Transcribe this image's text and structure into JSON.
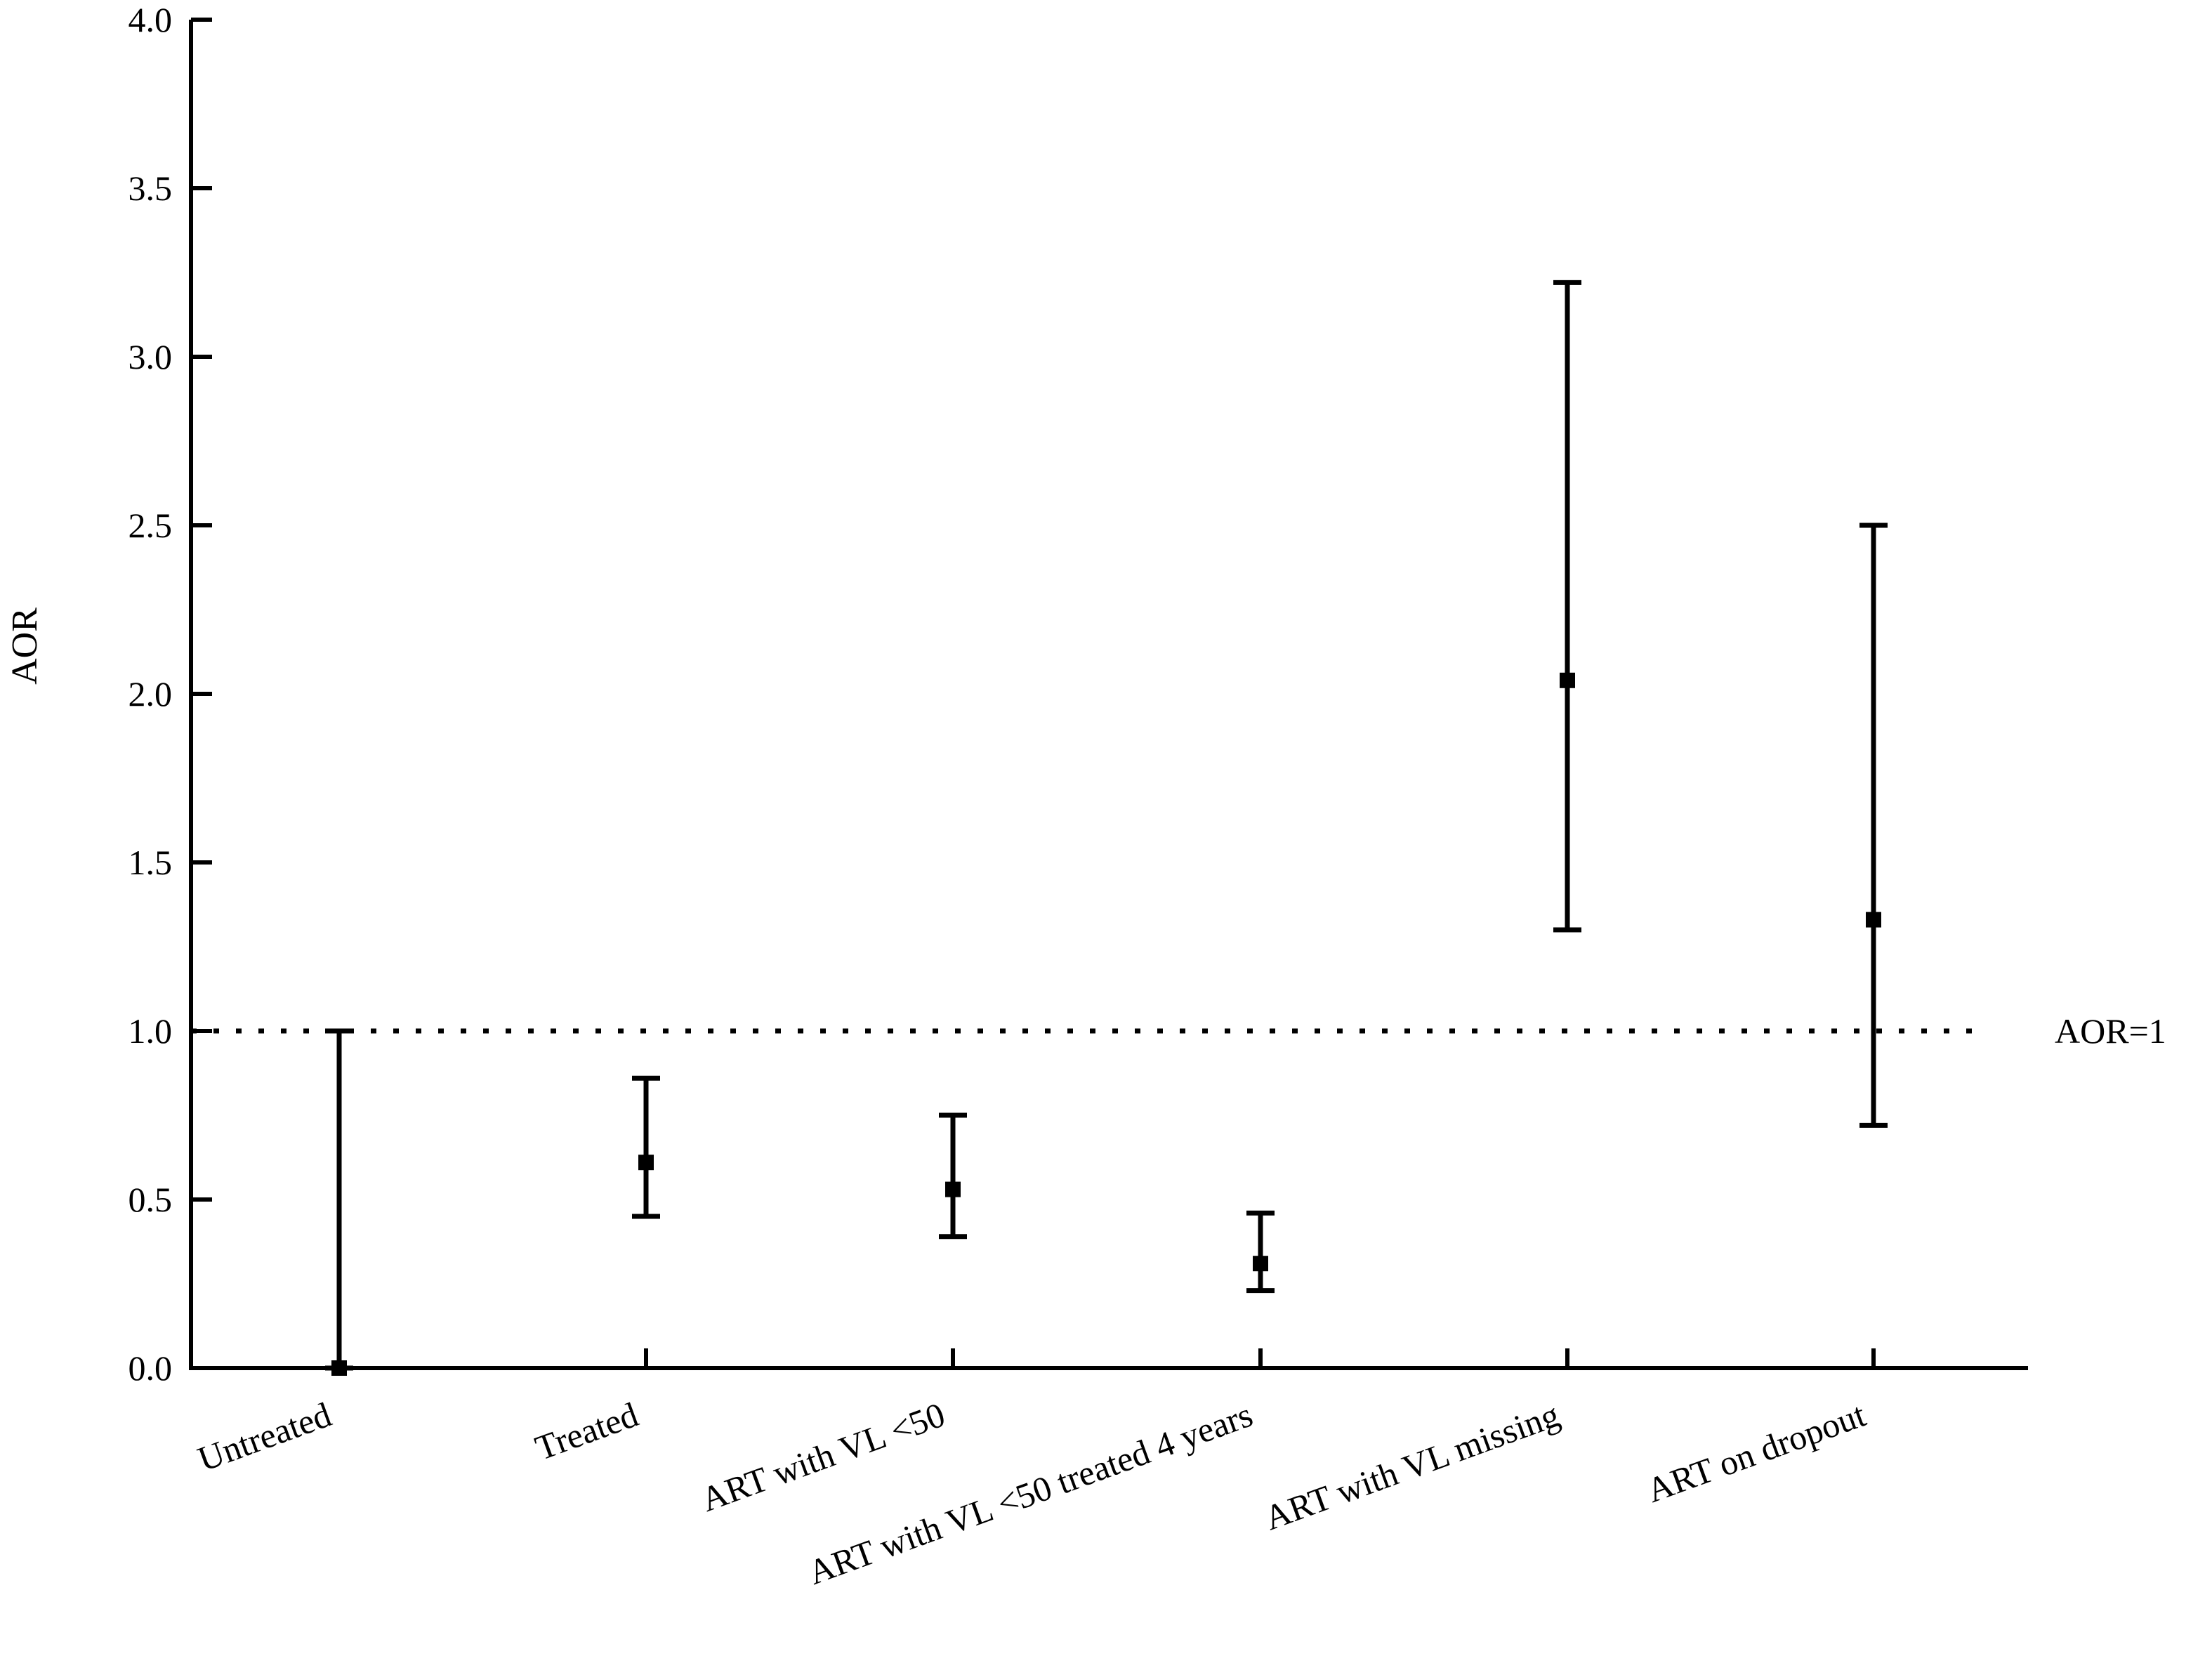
{
  "chart_data": {
    "type": "scatter",
    "subtype": "point-with-error-bars",
    "title": "",
    "xlabel": "",
    "ylabel": "AOR",
    "ylim": [
      0,
      4.0
    ],
    "yticks": [
      "0.0",
      "0.5",
      "1.0",
      "1.5",
      "2.0",
      "2.5",
      "3.0",
      "3.5",
      "4.0"
    ],
    "categories": [
      "Untreated",
      "Treated",
      "ART with VL <50",
      "ART with VL <50 treated 4 years",
      "ART with VL missing",
      "ART on dropout"
    ],
    "points": [
      {
        "category": "Untreated",
        "estimate": 0.0,
        "lower": 0.0,
        "upper": 1.0
      },
      {
        "category": "Treated",
        "estimate": 0.61,
        "lower": 0.45,
        "upper": 0.86
      },
      {
        "category": "ART with VL <50",
        "estimate": 0.53,
        "lower": 0.39,
        "upper": 0.75
      },
      {
        "category": "ART with VL <50 treated 4 years",
        "estimate": 0.31,
        "lower": 0.23,
        "upper": 0.46
      },
      {
        "category": "ART with VL missing",
        "estimate": 2.04,
        "lower": 1.3,
        "upper": 3.22
      },
      {
        "category": "ART on dropout",
        "estimate": 1.33,
        "lower": 0.72,
        "upper": 2.5
      }
    ],
    "reference_line": {
      "value": 1.0,
      "label": "AOR=1",
      "style": "dotted"
    },
    "grid": false,
    "color": "#000000"
  }
}
